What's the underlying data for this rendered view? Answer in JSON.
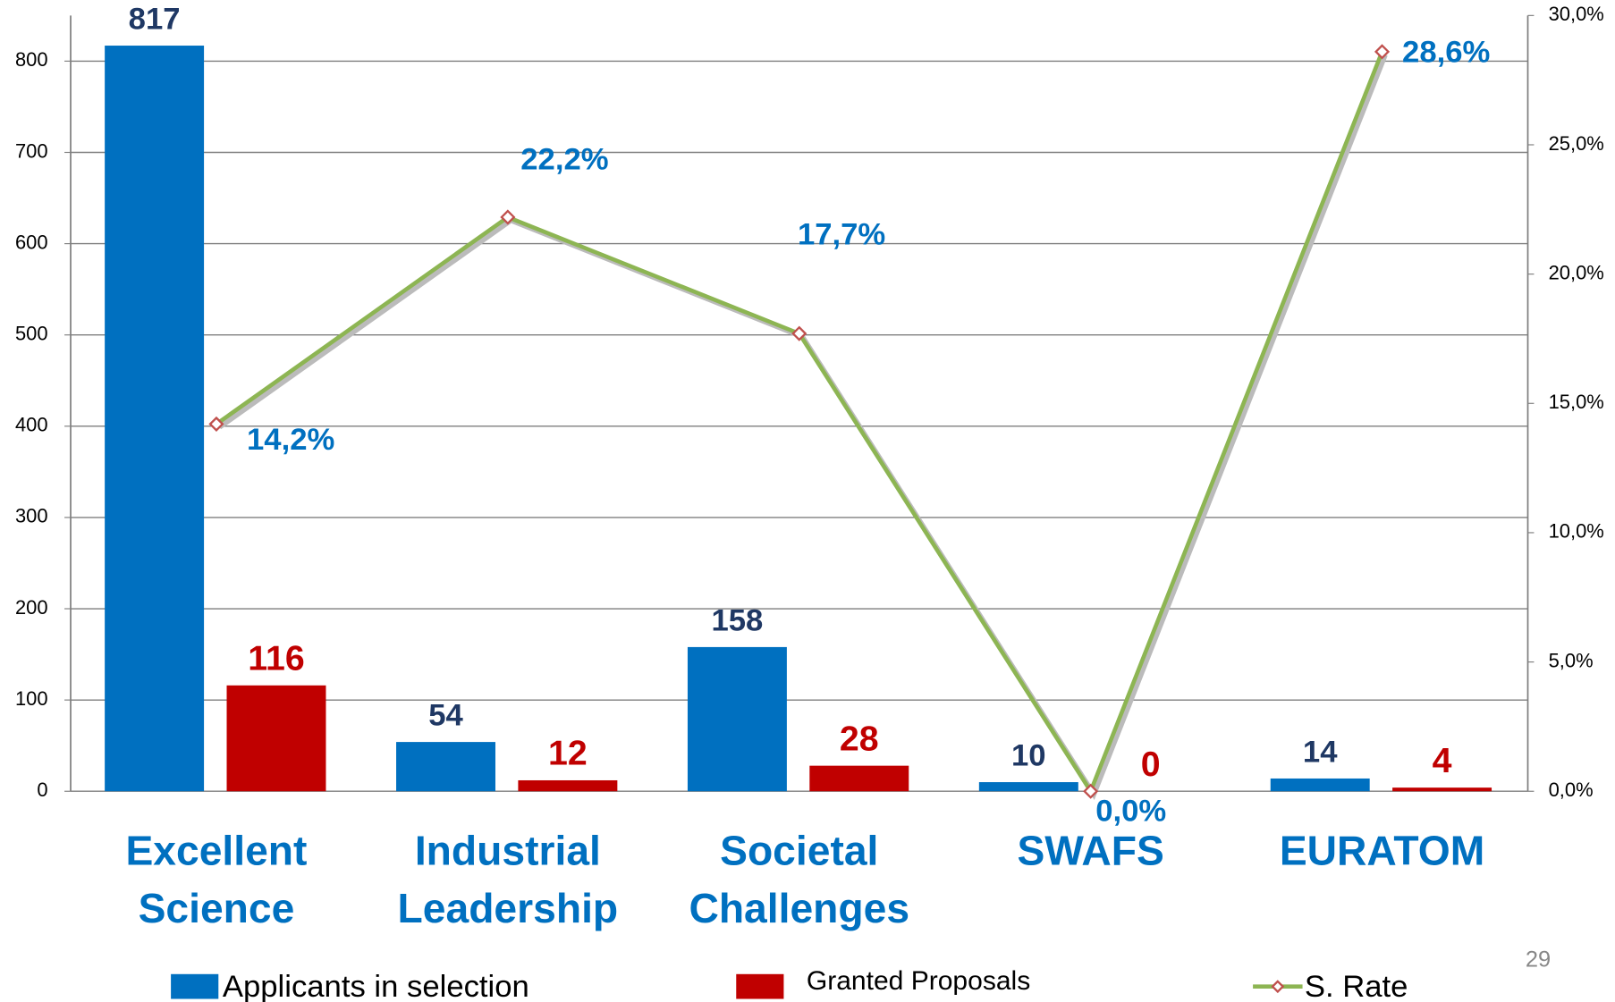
{
  "chart_data": {
    "type": "bar",
    "categories": [
      "Excellent Science",
      "Industrial Leadership",
      "Societal Challenges",
      "SWAFS",
      "EURATOM"
    ],
    "series": [
      {
        "name": "Applicants in selection",
        "color": "#0070c0",
        "values": [
          817,
          54,
          158,
          10,
          14
        ]
      },
      {
        "name": "Granted Proposals",
        "color": "#c00000",
        "values": [
          116,
          12,
          28,
          0,
          4
        ]
      },
      {
        "name": "S. Rate",
        "type": "line",
        "axis": "y2",
        "color": "#8db553",
        "values": [
          14.2,
          22.2,
          17.7,
          0.0,
          28.6
        ],
        "value_labels": [
          "14,2%",
          "22,2%",
          "17,7%",
          "0,0%",
          "28,6%"
        ]
      }
    ],
    "ylim": [
      0,
      850
    ],
    "yticks": [
      0,
      100,
      200,
      300,
      400,
      500,
      600,
      700,
      800
    ],
    "y2lim": [
      0,
      30
    ],
    "y2ticks": [
      {
        "value": 0,
        "label": "0,0%"
      },
      {
        "value": 5,
        "label": "5,0%"
      },
      {
        "value": 10,
        "label": "10,0%"
      },
      {
        "value": 15,
        "label": "15,0%"
      },
      {
        "value": 20,
        "label": "20,0%"
      },
      {
        "value": 25,
        "label": "25,0%"
      },
      {
        "value": 30,
        "label": "30,0%"
      }
    ],
    "grid": true,
    "legend": "bottom",
    "page_number": "29"
  }
}
